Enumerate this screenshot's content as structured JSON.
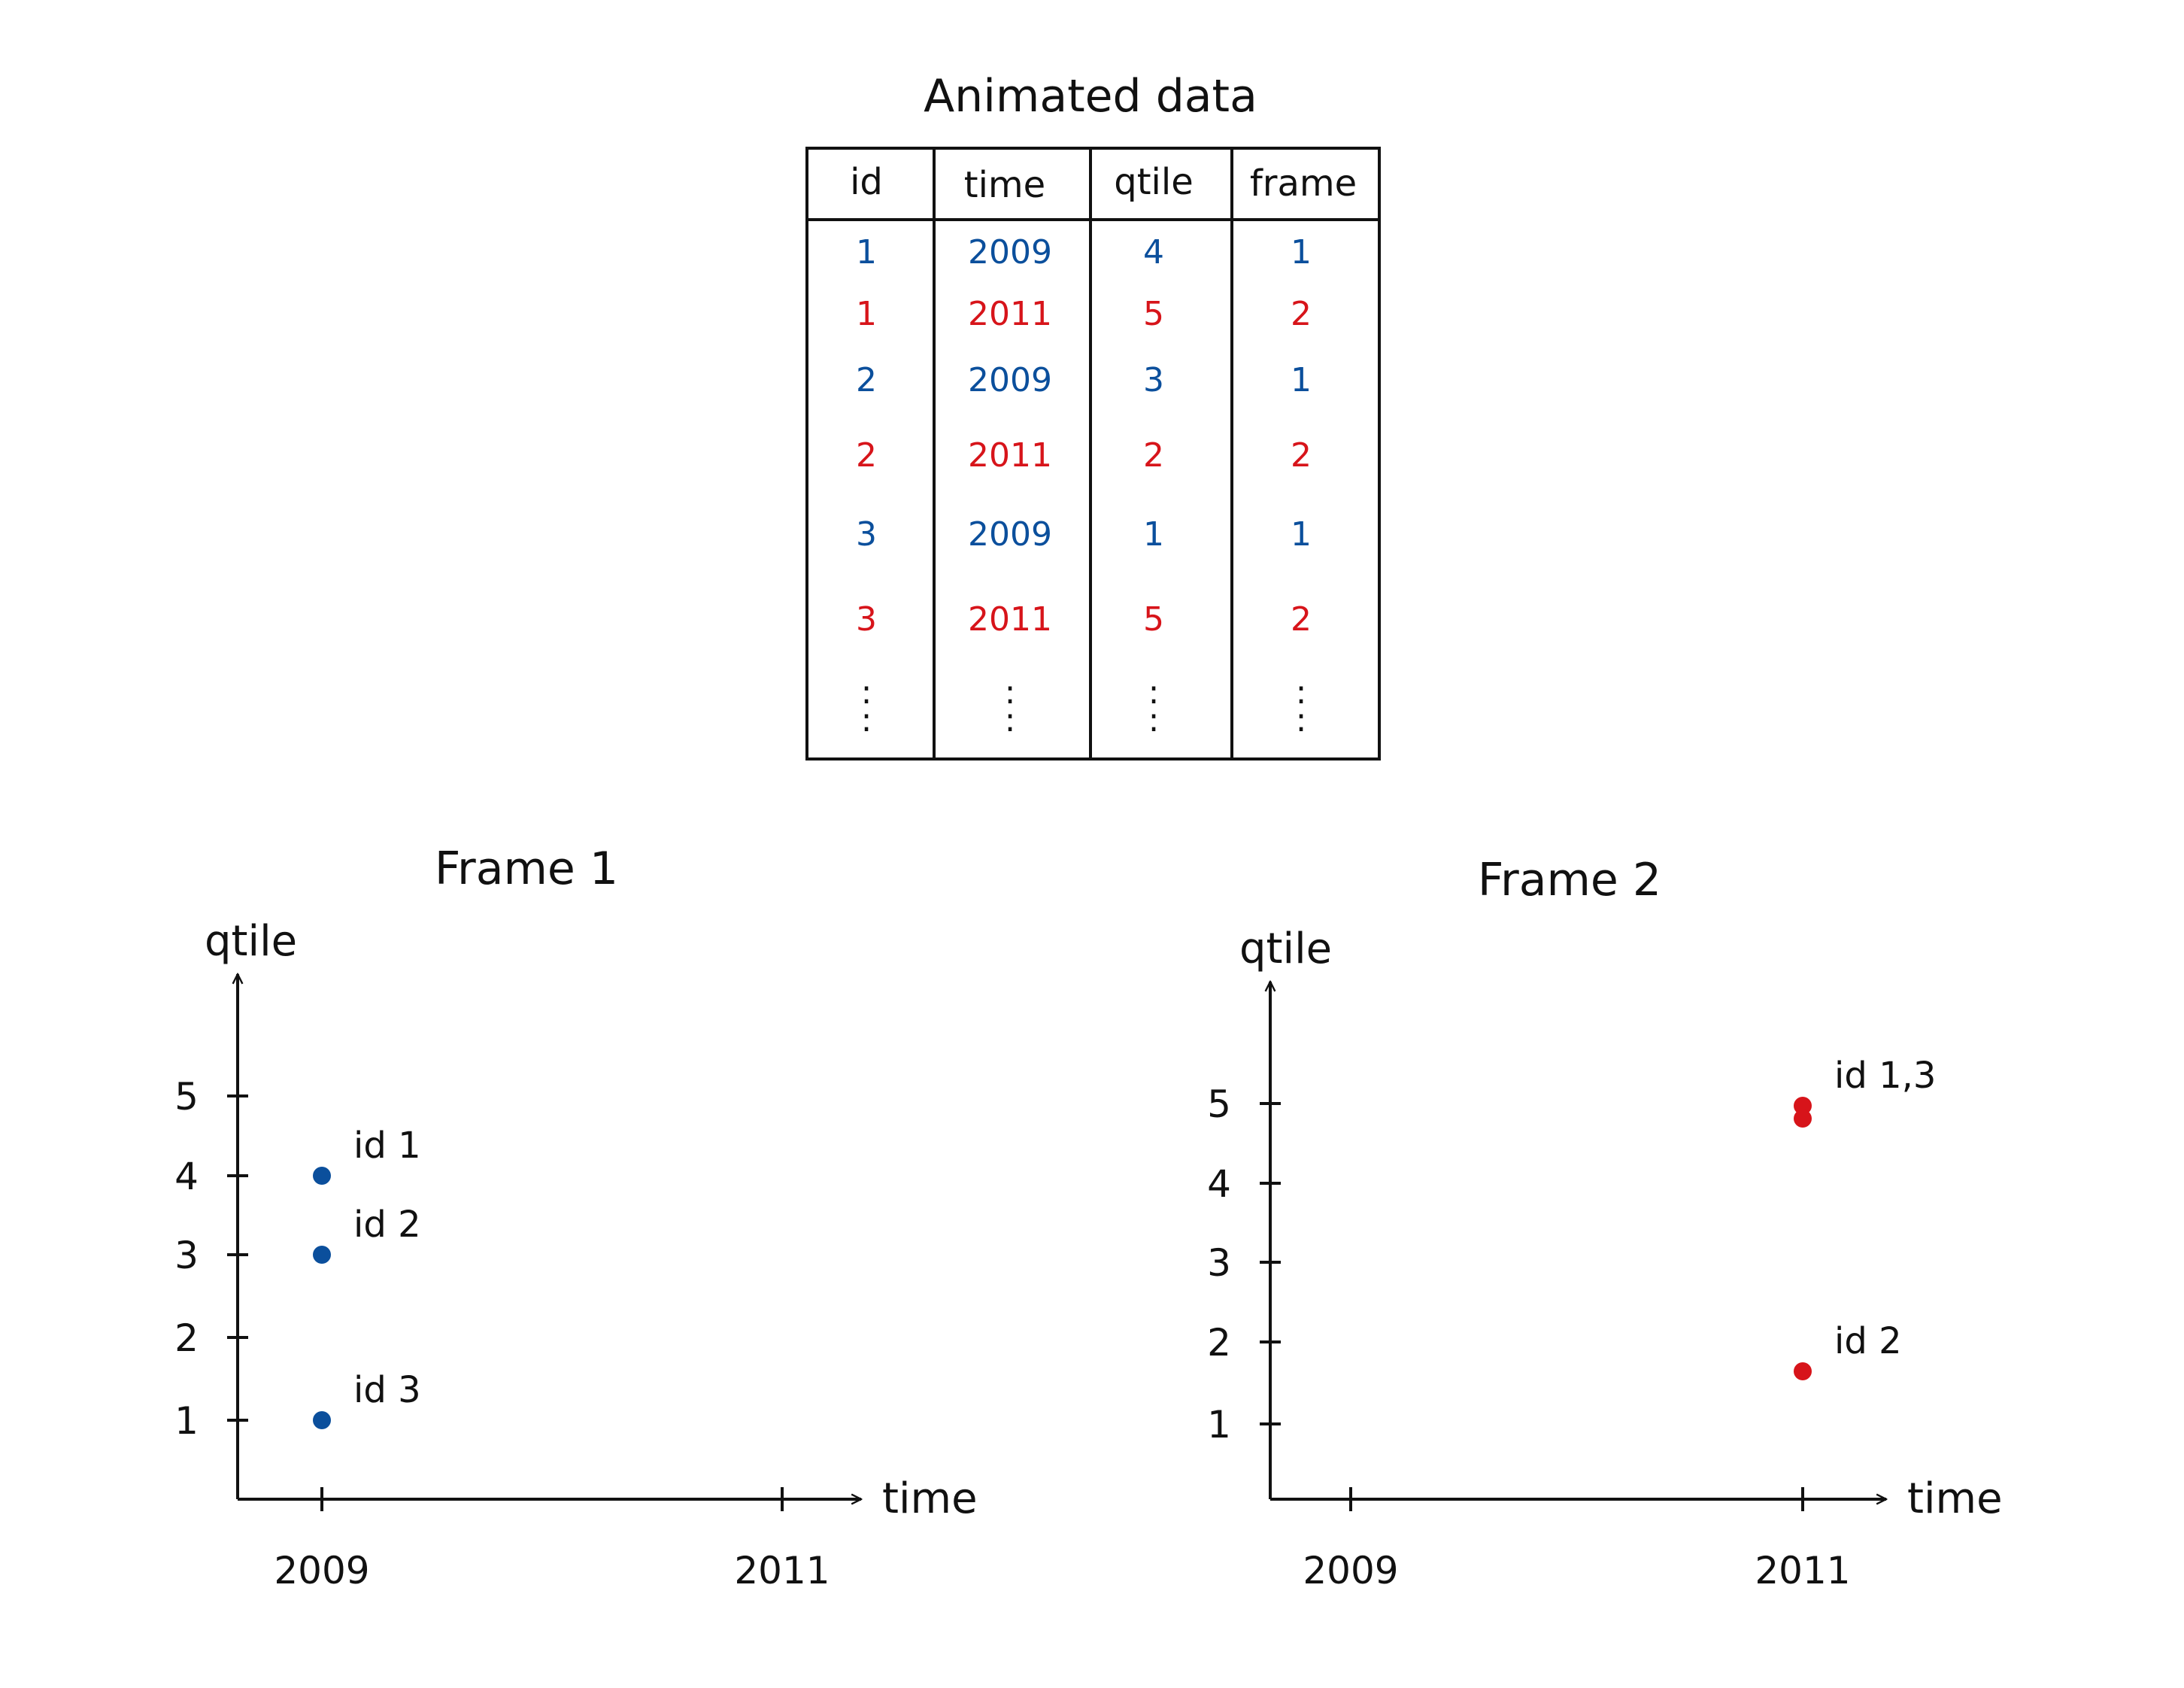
{
  "table": {
    "title": "Animated data",
    "headers": [
      "id",
      "time",
      "qtile",
      "frame"
    ],
    "rows": [
      {
        "cells": [
          "1",
          "2009",
          "4",
          "1"
        ],
        "frame": 1
      },
      {
        "cells": [
          "1",
          "2011",
          "5",
          "2"
        ],
        "frame": 2
      },
      {
        "cells": [
          "2",
          "2009",
          "3",
          "1"
        ],
        "frame": 1
      },
      {
        "cells": [
          "2",
          "2011",
          "2",
          "2"
        ],
        "frame": 2
      },
      {
        "cells": [
          "3",
          "2009",
          "1",
          "1"
        ],
        "frame": 1
      },
      {
        "cells": [
          "3",
          "2011",
          "5",
          "2"
        ],
        "frame": 2
      }
    ],
    "continuation": ":"
  },
  "colors": {
    "frame1": "#0b4f9c",
    "frame2": "#d7141a",
    "ink": "#111111"
  },
  "chart_data": [
    {
      "type": "scatter",
      "title": "Frame 1",
      "xlabel": "time",
      "ylabel": "qtile",
      "x_ticks": [
        "2009",
        "2011"
      ],
      "y_ticks": [
        1,
        2,
        3,
        4,
        5
      ],
      "points": [
        {
          "label": "id 1",
          "x": "2009",
          "y": 4
        },
        {
          "label": "id 2",
          "x": "2009",
          "y": 3
        },
        {
          "label": "id 3",
          "x": "2009",
          "y": 1
        }
      ],
      "color": "#0b4f9c"
    },
    {
      "type": "scatter",
      "title": "Frame 2",
      "xlabel": "time",
      "ylabel": "qtile",
      "x_ticks": [
        "2009",
        "2011"
      ],
      "y_ticks": [
        1,
        2,
        3,
        4,
        5
      ],
      "points": [
        {
          "label": "id 1,3",
          "x": "2011",
          "y": 5
        },
        {
          "x": "2011",
          "y": 5
        },
        {
          "label": "id 2",
          "x": "2011",
          "y": 2
        }
      ],
      "color": "#d7141a"
    }
  ]
}
